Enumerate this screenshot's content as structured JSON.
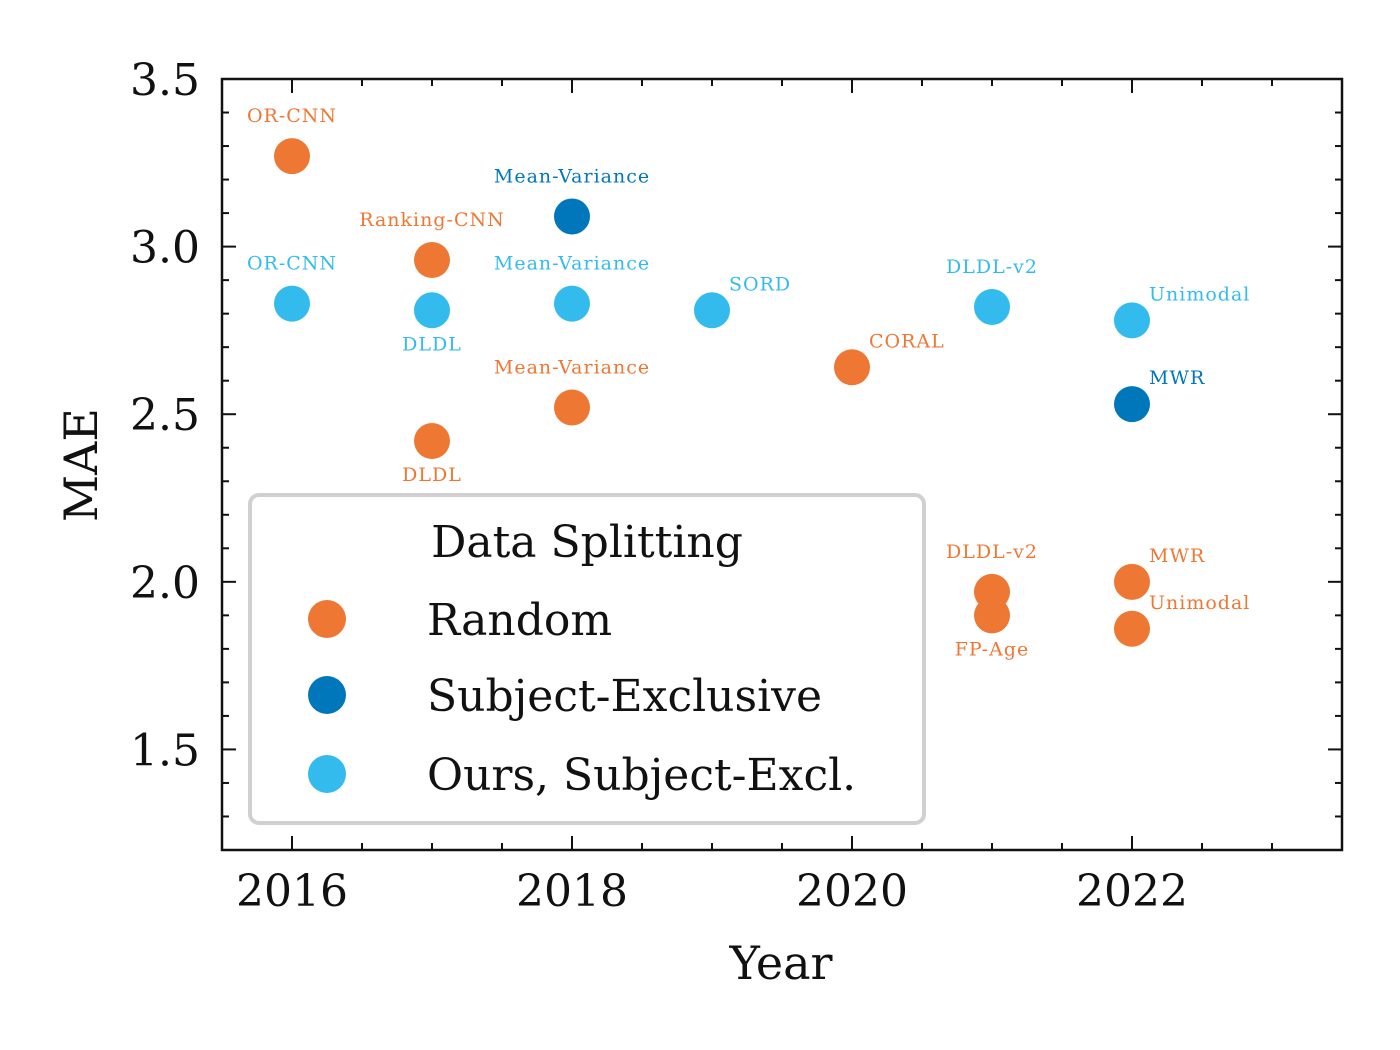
{
  "chart_data": {
    "type": "scatter",
    "xlabel": "Year",
    "ylabel": "MAE",
    "xlim": [
      2015.5,
      2023.5
    ],
    "ylim": [
      1.2,
      3.5
    ],
    "xticks": [
      "2016",
      "2018",
      "2020",
      "2022"
    ],
    "yticks": [
      "1.5",
      "2.0",
      "2.5",
      "3.0",
      "3.5"
    ],
    "legend": {
      "title": "Data Splitting",
      "placement": "lower-left",
      "entries": [
        {
          "key": "random",
          "label": "Random"
        },
        {
          "key": "subject",
          "label": "Subject-Exclusive"
        },
        {
          "key": "ours",
          "label": "Ours, Subject-Excl."
        }
      ]
    },
    "colors": {
      "random": "#ee7733",
      "subject": "#0077bb",
      "ours": "#33bbee"
    },
    "series": [
      {
        "name": "Random",
        "key": "random",
        "points": [
          {
            "x": 2016,
            "y": 3.27,
            "label": "OR-CNN",
            "pos": "above"
          },
          {
            "x": 2017,
            "y": 2.96,
            "label": "Ranking-CNN",
            "pos": "above"
          },
          {
            "x": 2017,
            "y": 2.42,
            "label": "DLDL",
            "pos": "below"
          },
          {
            "x": 2018,
            "y": 2.52,
            "label": "Mean-Variance",
            "pos": "above"
          },
          {
            "x": 2020,
            "y": 2.64,
            "label": "CORAL",
            "pos": "above-right"
          },
          {
            "x": 2021,
            "y": 1.97,
            "label": "DLDL-v2",
            "pos": "above"
          },
          {
            "x": 2021,
            "y": 1.9,
            "label": "FP-Age",
            "pos": "below"
          },
          {
            "x": 2022,
            "y": 2.0,
            "label": "MWR",
            "pos": "above-right"
          },
          {
            "x": 2022,
            "y": 1.86,
            "label": "Unimodal",
            "pos": "above-right"
          }
        ]
      },
      {
        "name": "Subject-Exclusive",
        "key": "subject",
        "points": [
          {
            "x": 2018,
            "y": 3.09,
            "label": "Mean-Variance",
            "pos": "above"
          },
          {
            "x": 2022,
            "y": 2.53,
            "label": "MWR",
            "pos": "above-right"
          }
        ]
      },
      {
        "name": "Ours, Subject-Excl.",
        "key": "ours",
        "points": [
          {
            "x": 2016,
            "y": 2.83,
            "label": "OR-CNN",
            "pos": "above"
          },
          {
            "x": 2017,
            "y": 2.81,
            "label": "DLDL",
            "pos": "below"
          },
          {
            "x": 2018,
            "y": 2.83,
            "label": "Mean-Variance",
            "pos": "above"
          },
          {
            "x": 2019,
            "y": 2.81,
            "label": "SORD",
            "pos": "above-right"
          },
          {
            "x": 2021,
            "y": 2.82,
            "label": "DLDL-v2",
            "pos": "above"
          },
          {
            "x": 2022,
            "y": 2.78,
            "label": "Unimodal",
            "pos": "above-right"
          }
        ]
      }
    ]
  }
}
